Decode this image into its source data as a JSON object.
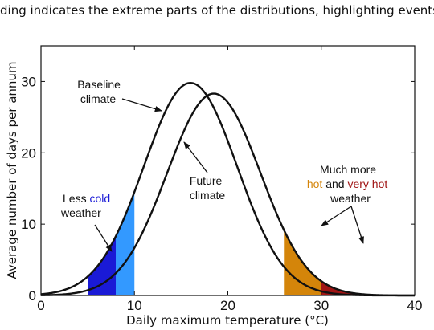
{
  "caption": "ding indicates the extreme parts of the distributions, highlighting events",
  "chart_data": {
    "type": "line",
    "xlabel": "Daily maximum temperature (°C)",
    "ylabel": "Average number of days per annum",
    "xlim": [
      0,
      40
    ],
    "ylim": [
      0,
      35
    ],
    "xticks": [
      0,
      10,
      20,
      30,
      40
    ],
    "yticks": [
      0,
      10,
      20,
      30
    ],
    "grid": false,
    "series": [
      {
        "key": "baseline",
        "mean": 16,
        "sd": 5,
        "peak": 29.8,
        "color": "#111111"
      },
      {
        "key": "future",
        "mean": 18.5,
        "sd": 5,
        "peak": 28.3,
        "color": "#111111"
      }
    ],
    "shaded_regions": [
      {
        "curve": "baseline",
        "x_from": 5,
        "x_to": 8,
        "color": "#1a1ad6"
      },
      {
        "curve": "baseline",
        "x_from": 8,
        "x_to": 10,
        "color": "#3399ff"
      },
      {
        "curve": "future",
        "x_from": 26,
        "x_to": 30,
        "color": "#d4850a"
      },
      {
        "curve": "future",
        "x_from": 30,
        "x_to": 40,
        "color": "#a01414"
      }
    ],
    "annotations": {
      "baseline": [
        "Baseline",
        "climate"
      ],
      "future": [
        "Future",
        "climate"
      ],
      "less_cold": {
        "line1_a": "Less ",
        "line1_b": "cold",
        "line2": "weather",
        "cold_color": "#1a1ad6"
      },
      "more_hot": {
        "line1": "Much more",
        "hot": "hot",
        "and": " and ",
        "very_hot": "very hot",
        "line3": "weather",
        "hot_color": "#d4850a",
        "very_hot_color": "#a01414"
      }
    }
  }
}
